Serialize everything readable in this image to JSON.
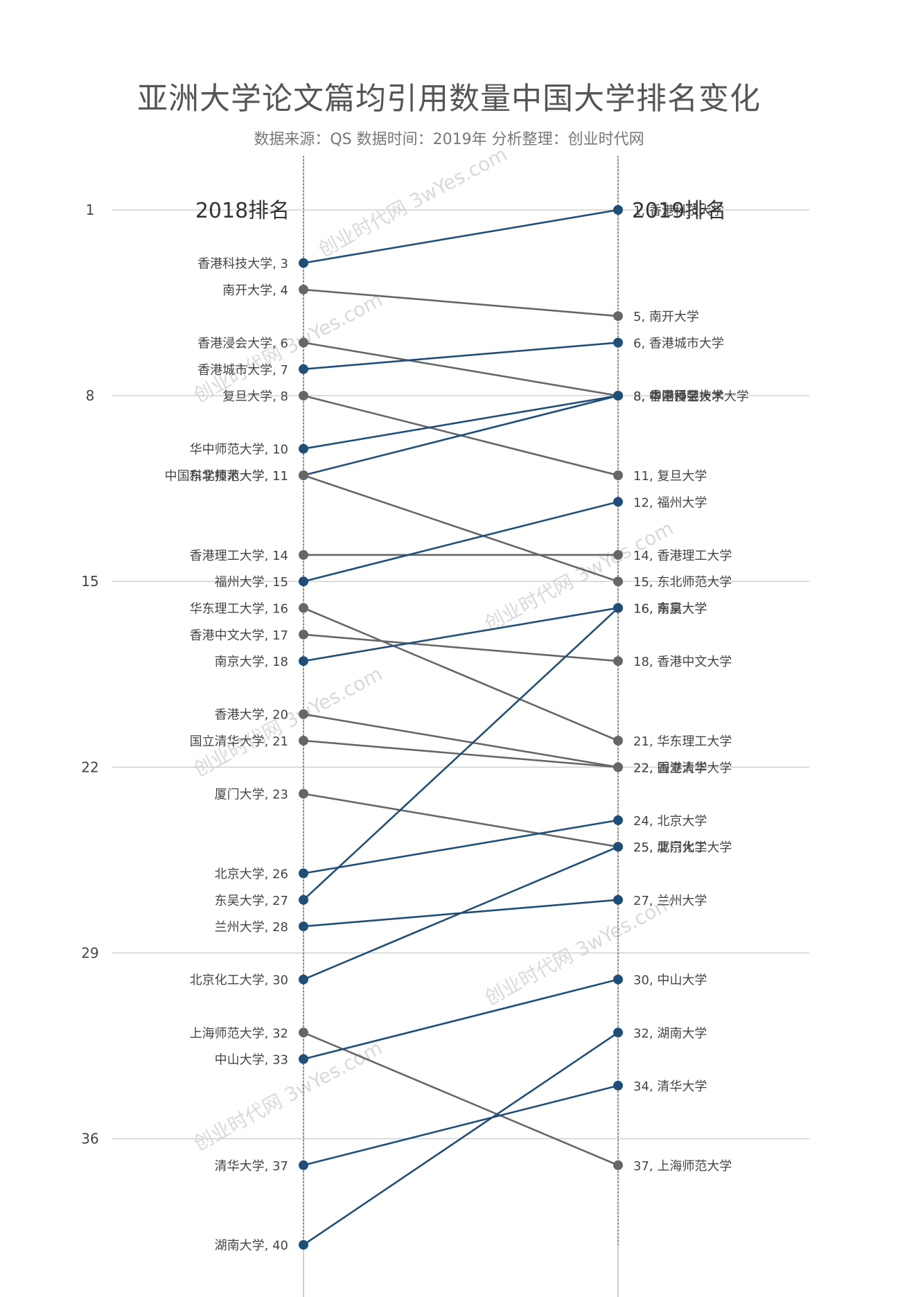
{
  "title": "亚洲大学论文篇均引用数量中国大学排名变化",
  "subtitle": "数据来源：QS 数据时间：2019年 分析整理：创业时代网",
  "watermark": "创业时代网 3wYes.com",
  "colors": {
    "up": "#1f4e79",
    "down": "#666666",
    "grid": "#d0d0d0",
    "axis": "#bfbfbf"
  },
  "chart_data": {
    "type": "slope",
    "columns": [
      "2018排名",
      "2019排名"
    ],
    "ylim": [
      1,
      40
    ],
    "yticks": [
      1,
      8,
      15,
      22,
      29,
      36
    ],
    "left_labels": [
      {
        "name": "香港科技大学",
        "rank": 3
      },
      {
        "name": "南开大学",
        "rank": 4
      },
      {
        "name": "香港浸会大学",
        "rank": 6
      },
      {
        "name": "香港城市大学",
        "rank": 7
      },
      {
        "name": "复旦大学",
        "rank": 8
      },
      {
        "name": "华中师范大学",
        "rank": 10
      },
      {
        "name": "中国科学技术大学",
        "rank": 11
      },
      {
        "name": "东北师范大学",
        "rank": 11
      },
      {
        "name": "香港理工大学",
        "rank": 14
      },
      {
        "name": "福州大学",
        "rank": 15
      },
      {
        "name": "华东理工大学",
        "rank": 16
      },
      {
        "name": "香港中文大学",
        "rank": 17
      },
      {
        "name": "南京大学",
        "rank": 18
      },
      {
        "name": "香港大学",
        "rank": 20
      },
      {
        "name": "国立清华大学",
        "rank": 21
      },
      {
        "name": "厦门大学",
        "rank": 23
      },
      {
        "name": "北京大学",
        "rank": 26
      },
      {
        "name": "东吴大学",
        "rank": 27
      },
      {
        "name": "兰州大学",
        "rank": 28
      },
      {
        "name": "北京化工大学",
        "rank": 30
      },
      {
        "name": "上海师范大学",
        "rank": 32
      },
      {
        "name": "中山大学",
        "rank": 33
      },
      {
        "name": "清华大学",
        "rank": 37
      },
      {
        "name": "湖南大学",
        "rank": 40
      }
    ],
    "right_labels": [
      {
        "name": "香港科技大学",
        "rank": 1
      },
      {
        "name": "南开大学",
        "rank": 5
      },
      {
        "name": "香港城市大学",
        "rank": 6
      },
      {
        "name": "华中师范大学",
        "rank": 8
      },
      {
        "name": "香港浸会大学",
        "rank": 8
      },
      {
        "name": "中国科学技术大学",
        "rank": 8
      },
      {
        "name": "复旦大学",
        "rank": 11
      },
      {
        "name": "福州大学",
        "rank": 12
      },
      {
        "name": "香港理工大学",
        "rank": 14
      },
      {
        "name": "东北师范大学",
        "rank": 15
      },
      {
        "name": "南京大学",
        "rank": 16
      },
      {
        "name": "东吴大学",
        "rank": 16
      },
      {
        "name": "香港中文大学",
        "rank": 18
      },
      {
        "name": "华东理工大学",
        "rank": 21
      },
      {
        "name": "香港大学",
        "rank": 22
      },
      {
        "name": "国立清华大学",
        "rank": 22
      },
      {
        "name": "北京大学",
        "rank": 24
      },
      {
        "name": "厦门大学",
        "rank": 25
      },
      {
        "name": "北京化工大学",
        "rank": 25
      },
      {
        "name": "兰州大学",
        "rank": 27
      },
      {
        "name": "中山大学",
        "rank": 30
      },
      {
        "name": "湖南大学",
        "rank": 32
      },
      {
        "name": "清华大学",
        "rank": 34
      },
      {
        "name": "上海师范大学",
        "rank": 37
      }
    ],
    "series": [
      {
        "name": "香港科技大学",
        "from": 3,
        "to": 1,
        "dir": "up"
      },
      {
        "name": "南开大学",
        "from": 4,
        "to": 5,
        "dir": "down"
      },
      {
        "name": "香港浸会大学",
        "from": 6,
        "to": 8,
        "dir": "down"
      },
      {
        "name": "香港城市大学",
        "from": 7,
        "to": 6,
        "dir": "up"
      },
      {
        "name": "复旦大学",
        "from": 8,
        "to": 11,
        "dir": "down"
      },
      {
        "name": "华中师范大学",
        "from": 10,
        "to": 8,
        "dir": "up"
      },
      {
        "name": "中国科学技术大学",
        "from": 11,
        "to": 8,
        "dir": "up"
      },
      {
        "name": "东北师范大学",
        "from": 11,
        "to": 15,
        "dir": "down"
      },
      {
        "name": "香港理工大学",
        "from": 14,
        "to": 14,
        "dir": "down"
      },
      {
        "name": "福州大学",
        "from": 15,
        "to": 12,
        "dir": "up"
      },
      {
        "name": "华东理工大学",
        "from": 16,
        "to": 21,
        "dir": "down"
      },
      {
        "name": "香港中文大学",
        "from": 17,
        "to": 18,
        "dir": "down"
      },
      {
        "name": "南京大学",
        "from": 18,
        "to": 16,
        "dir": "up"
      },
      {
        "name": "香港大学",
        "from": 20,
        "to": 22,
        "dir": "down"
      },
      {
        "name": "国立清华大学",
        "from": 21,
        "to": 22,
        "dir": "down"
      },
      {
        "name": "厦门大学",
        "from": 23,
        "to": 25,
        "dir": "down"
      },
      {
        "name": "北京大学",
        "from": 26,
        "to": 24,
        "dir": "up"
      },
      {
        "name": "东吴大学",
        "from": 27,
        "to": 16,
        "dir": "up"
      },
      {
        "name": "兰州大学",
        "from": 28,
        "to": 27,
        "dir": "up"
      },
      {
        "name": "北京化工大学",
        "from": 30,
        "to": 25,
        "dir": "up"
      },
      {
        "name": "上海师范大学",
        "from": 32,
        "to": 37,
        "dir": "down"
      },
      {
        "name": "中山大学",
        "from": 33,
        "to": 30,
        "dir": "up"
      },
      {
        "name": "清华大学",
        "from": 37,
        "to": 34,
        "dir": "up"
      },
      {
        "name": "湖南大学",
        "from": 40,
        "to": 32,
        "dir": "up"
      }
    ]
  }
}
